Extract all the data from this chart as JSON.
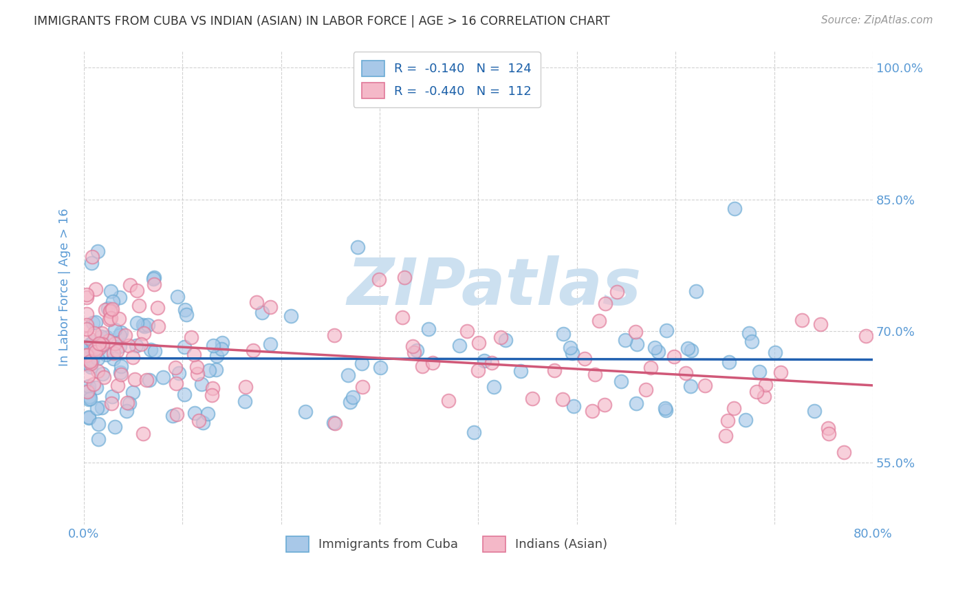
{
  "title": "IMMIGRANTS FROM CUBA VS INDIAN (ASIAN) IN LABOR FORCE | AGE > 16 CORRELATION CHART",
  "source": "Source: ZipAtlas.com",
  "ylabel": "In Labor Force | Age > 16",
  "xlim": [
    0.0,
    0.8
  ],
  "ylim": [
    0.48,
    1.02
  ],
  "yticks": [
    0.55,
    0.7,
    0.85,
    1.0
  ],
  "ytick_labels": [
    "55.0%",
    "70.0%",
    "85.0%",
    "100.0%"
  ],
  "xticks": [
    0.0,
    0.1,
    0.2,
    0.3,
    0.4,
    0.5,
    0.6,
    0.7,
    0.8
  ],
  "xtick_labels": [
    "0.0%",
    "",
    "",
    "",
    "",
    "",
    "",
    "",
    "80.0%"
  ],
  "legend_label_cuba": "R =  -0.140   N =  124",
  "legend_label_indian": "R =  -0.440   N =  112",
  "bottom_label_cuba": "Immigrants from Cuba",
  "bottom_label_indian": "Indians (Asian)",
  "cuba_color": "#a8c8e8",
  "cuba_edge": "#6aaad4",
  "indian_color": "#f4b8c8",
  "indian_edge": "#e07898",
  "trend_cuba_color": "#2060b0",
  "trend_indian_color": "#d05878",
  "watermark": "ZIPatlas",
  "watermark_color": "#cce0f0",
  "background_color": "#ffffff",
  "grid_color": "#cccccc",
  "title_color": "#333333",
  "axis_label_color": "#5b9bd5",
  "tick_label_color": "#5b9bd5",
  "cuba_R": -0.14,
  "cuba_N": 124,
  "indian_R": -0.44,
  "indian_N": 112,
  "seed": 42
}
